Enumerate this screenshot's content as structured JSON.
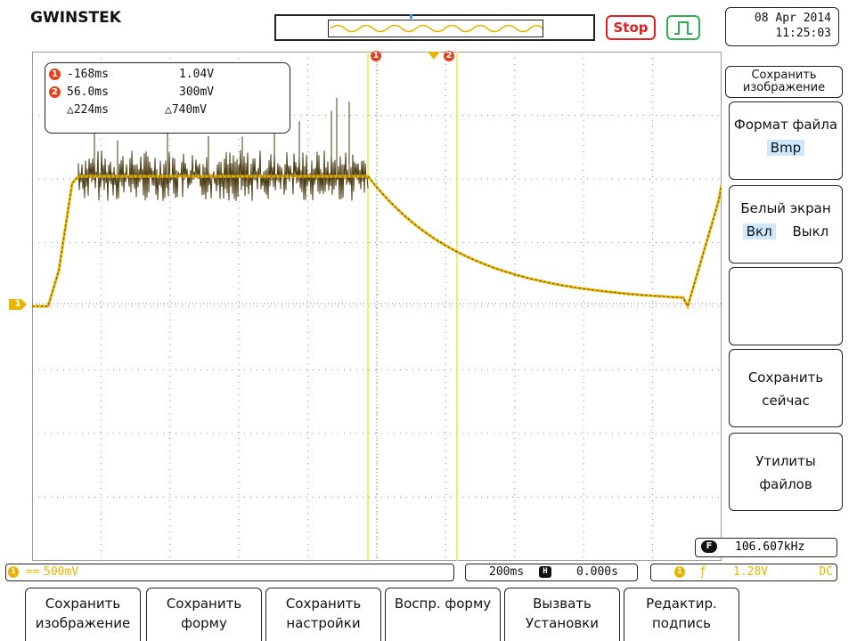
{
  "brand": "GWINSTEK",
  "run_status": "Stop",
  "datetime": {
    "date": "08 Apr 2014",
    "time": "11:25:03"
  },
  "measurements": {
    "cursor1": {
      "marker": "1",
      "time": "-168ms",
      "voltage": "1.04V"
    },
    "cursor2": {
      "marker": "2",
      "time": "56.0ms",
      "voltage": "300mV"
    },
    "delta": {
      "time": "△224ms",
      "voltage": "△740mV"
    }
  },
  "cursor_markers": {
    "c1": "1",
    "c2": "2"
  },
  "channel_marker": "1",
  "side_menu": {
    "title": "Сохранить изображение",
    "file_format": {
      "label": "Формат файла",
      "value": "Bmp"
    },
    "white_screen": {
      "label": "Белый экран",
      "on": "Вкл",
      "off": "Выкл"
    },
    "save_now": "Сохранить сейчас",
    "file_utilities": "Утилиты файлов"
  },
  "frequency": {
    "badge": "F",
    "value": "106.607kHz"
  },
  "status": {
    "ch1_marker": "1",
    "ch1_coupling": "==",
    "ch1_scale": "500mV",
    "timebase": "200ms",
    "h_icon": "H",
    "h_position": "0.000s",
    "trig_source": "1",
    "trig_slope": "ƒ",
    "trig_level": "1.28V",
    "trig_coupling": "DC"
  },
  "bottom_menu": [
    "Сохранить изображение",
    "Сохранить форму",
    "Сохранить настройки",
    "Воспр. форму",
    "Вызвать Установки",
    "Редактир. подпись"
  ],
  "colors": {
    "trace": "#e8b400",
    "trace_dark": "#4a3a10",
    "cursor": "#f2e64a",
    "grid_dots": "#888888",
    "stop": "#e02020",
    "trigger_icon": "#2bb24c",
    "cursor_badge": "#e8401b",
    "status_ch1": "#e8b400"
  },
  "icons": [
    "trigger-run-icon",
    "horizontal-icon",
    "trigger-slope-icon",
    "frequency-icon"
  ]
}
